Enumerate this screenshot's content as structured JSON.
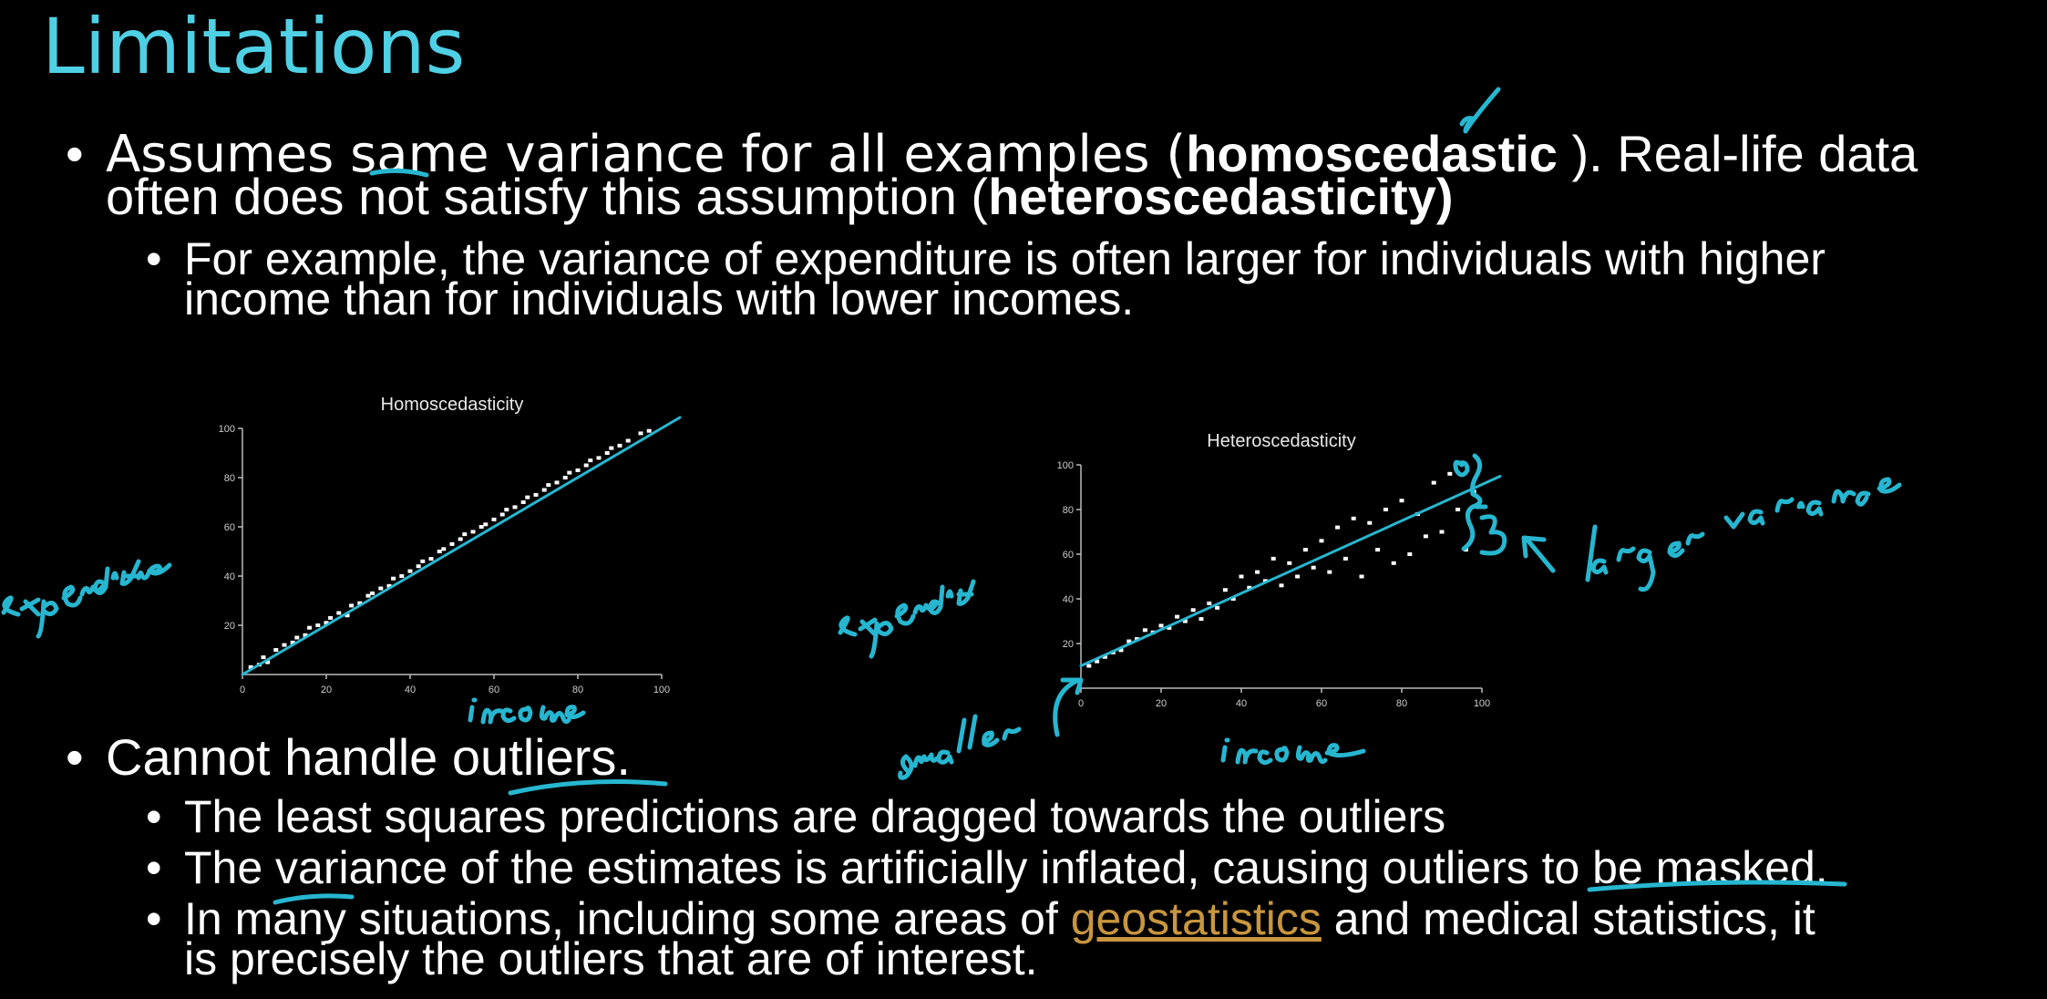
{
  "slide": {
    "title": "Limitations",
    "bullet1": {
      "line1_part1": "Assumes same variance for all examples (",
      "line1_bold": "homoscedastic",
      "line1_part2": " ).  Real-life data",
      "line2_part1": "often does not satisfy this assumption (",
      "line2_bold": "heteroscedasticity)"
    },
    "sub1": {
      "line1": " For example, the variance of expenditure is often larger for individuals with higher",
      "line2": "income than for individuals with lower incomes."
    },
    "bullet2": {
      "text": "Cannot handle outliers."
    },
    "sub2": [
      {
        "text": "The least squares predictions are dragged towards the outliers"
      },
      {
        "text": "The variance of the estimates is artificially inflated, causing outliers to be masked."
      }
    ],
    "sub3": {
      "line1_part1": "In many situations, including some areas of ",
      "line1_link": "geostatistics",
      "line1_part2": " and medical statistics, it",
      "line2": "is precisely the outliers that are of interest."
    }
  },
  "chart_data": [
    {
      "type": "scatter",
      "title": "Homoscedasticity",
      "xlabel": "",
      "ylabel": "",
      "xlim": [
        0,
        100
      ],
      "ylim": [
        0,
        100
      ],
      "xticks": [
        "0",
        "20",
        "40",
        "60",
        "80",
        "100"
      ],
      "yticks": [
        "20",
        "40",
        "60",
        "80",
        "100"
      ],
      "trend_line": [
        [
          0,
          0
        ],
        [
          100,
          100
        ]
      ],
      "points": [
        [
          2,
          3
        ],
        [
          4,
          4
        ],
        [
          5,
          7
        ],
        [
          6,
          5
        ],
        [
          8,
          10
        ],
        [
          10,
          12
        ],
        [
          12,
          13
        ],
        [
          13,
          15
        ],
        [
          15,
          16
        ],
        [
          16,
          19
        ],
        [
          18,
          20
        ],
        [
          20,
          21
        ],
        [
          21,
          23
        ],
        [
          23,
          25
        ],
        [
          25,
          24
        ],
        [
          26,
          28
        ],
        [
          28,
          29
        ],
        [
          30,
          32
        ],
        [
          31,
          33
        ],
        [
          33,
          35
        ],
        [
          35,
          36
        ],
        [
          36,
          39
        ],
        [
          38,
          40
        ],
        [
          40,
          42
        ],
        [
          42,
          44
        ],
        [
          43,
          46
        ],
        [
          45,
          47
        ],
        [
          47,
          50
        ],
        [
          48,
          51
        ],
        [
          50,
          53
        ],
        [
          52,
          55
        ],
        [
          53,
          57
        ],
        [
          55,
          58
        ],
        [
          57,
          60
        ],
        [
          58,
          61
        ],
        [
          60,
          63
        ],
        [
          62,
          65
        ],
        [
          63,
          67
        ],
        [
          65,
          68
        ],
        [
          67,
          70
        ],
        [
          68,
          72
        ],
        [
          70,
          73
        ],
        [
          72,
          75
        ],
        [
          73,
          77
        ],
        [
          75,
          78
        ],
        [
          77,
          80
        ],
        [
          78,
          82
        ],
        [
          80,
          83
        ],
        [
          82,
          85
        ],
        [
          83,
          87
        ],
        [
          85,
          88
        ],
        [
          87,
          90
        ],
        [
          88,
          92
        ],
        [
          90,
          93
        ],
        [
          92,
          95
        ],
        [
          95,
          98
        ],
        [
          97,
          99
        ]
      ]
    },
    {
      "type": "scatter",
      "title": "Heteroscedasticity",
      "xlabel": "",
      "ylabel": "",
      "xlim": [
        0,
        100
      ],
      "ylim": [
        0,
        100
      ],
      "xticks": [
        "0",
        "20",
        "40",
        "60",
        "80",
        "100"
      ],
      "yticks": [
        "20",
        "40",
        "60",
        "80",
        "100"
      ],
      "trend_line": [
        [
          0,
          10
        ],
        [
          100,
          90
        ]
      ],
      "points": [
        [
          2,
          10
        ],
        [
          4,
          12
        ],
        [
          6,
          14
        ],
        [
          8,
          16
        ],
        [
          10,
          17
        ],
        [
          12,
          21
        ],
        [
          14,
          22
        ],
        [
          16,
          26
        ],
        [
          18,
          25
        ],
        [
          20,
          28
        ],
        [
          22,
          27
        ],
        [
          24,
          32
        ],
        [
          26,
          30
        ],
        [
          28,
          35
        ],
        [
          30,
          31
        ],
        [
          32,
          38
        ],
        [
          34,
          36
        ],
        [
          36,
          44
        ],
        [
          38,
          40
        ],
        [
          40,
          50
        ],
        [
          42,
          45
        ],
        [
          44,
          52
        ],
        [
          46,
          48
        ],
        [
          48,
          58
        ],
        [
          50,
          46
        ],
        [
          52,
          56
        ],
        [
          54,
          50
        ],
        [
          56,
          62
        ],
        [
          58,
          54
        ],
        [
          60,
          66
        ],
        [
          62,
          52
        ],
        [
          64,
          72
        ],
        [
          66,
          58
        ],
        [
          68,
          76
        ],
        [
          70,
          50
        ],
        [
          72,
          74
        ],
        [
          74,
          62
        ],
        [
          76,
          80
        ],
        [
          78,
          56
        ],
        [
          80,
          84
        ],
        [
          82,
          60
        ],
        [
          84,
          78
        ],
        [
          86,
          68
        ],
        [
          88,
          92
        ],
        [
          90,
          70
        ],
        [
          92,
          96
        ],
        [
          94,
          80
        ],
        [
          96,
          62
        ],
        [
          98,
          88
        ]
      ]
    }
  ],
  "annotations": {
    "color": "#27b6d0",
    "handwriting": [
      "expenditure",
      "income",
      "expenditure",
      "smaller",
      "income",
      "larger variance"
    ]
  }
}
